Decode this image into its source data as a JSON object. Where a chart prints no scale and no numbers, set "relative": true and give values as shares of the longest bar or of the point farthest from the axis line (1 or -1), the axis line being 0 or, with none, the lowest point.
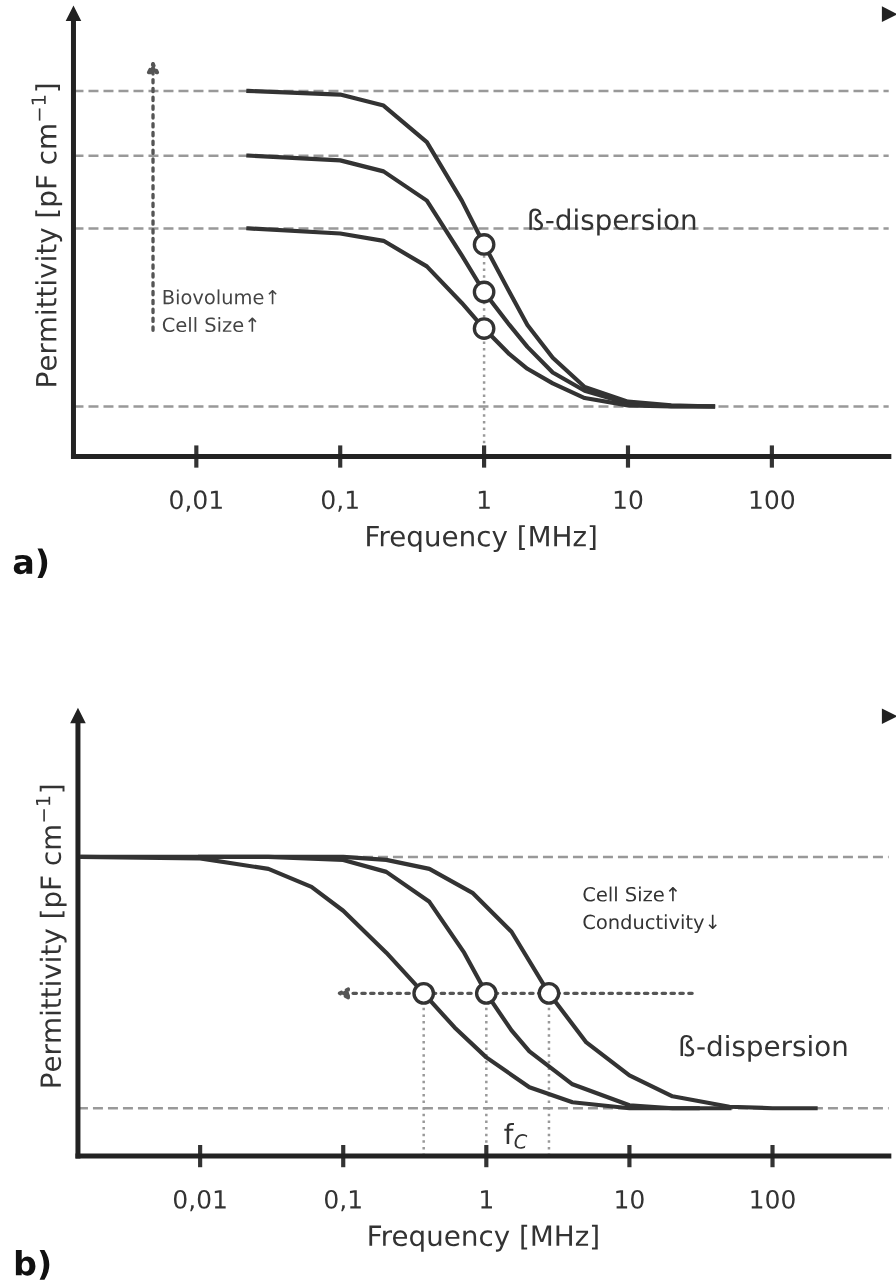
{
  "chart_data": [
    {
      "type": "line",
      "relative": true,
      "log": "x",
      "xlabel": "Frequency [MHz]",
      "ylabel": "Permittivity [pF cm$^{−1}$]",
      "xlim": [
        0.0014,
        650
      ],
      "xticks": [
        {
          "value": 0.01,
          "label": "0,01"
        },
        {
          "value": 0.1,
          "label": "0,1"
        },
        {
          "value": 1,
          "label": "1"
        },
        {
          "value": 10,
          "label": "10"
        },
        {
          "value": 100,
          "label": "100"
        }
      ],
      "grid": false,
      "legend": false,
      "line_style": "solid",
      "marker": "none",
      "series": [
        {
          "color": "#333333",
          "x": [
            0.023,
            0.1,
            0.2,
            0.4,
            0.7,
            1,
            1.5,
            2,
            3,
            5,
            10,
            20,
            39
          ],
          "values": [
            1,
            0.99,
            0.96,
            0.86,
            0.7,
            0.58,
            0.45,
            0.36,
            0.27,
            0.19,
            0.15,
            0.14,
            0.137
          ]
        },
        {
          "color": "#333333",
          "x": [
            0.023,
            0.1,
            0.2,
            0.4,
            0.7,
            1,
            1.5,
            2,
            3,
            5,
            10,
            20,
            39
          ],
          "values": [
            0.823,
            0.81,
            0.78,
            0.7,
            0.55,
            0.45,
            0.36,
            0.3,
            0.23,
            0.18,
            0.145,
            0.138,
            0.137
          ]
        },
        {
          "color": "#333333",
          "x": [
            0.023,
            0.1,
            0.2,
            0.4,
            0.7,
            1,
            1.5,
            2,
            3,
            5,
            10,
            20,
            39
          ],
          "values": [
            0.624,
            0.61,
            0.59,
            0.52,
            0.42,
            0.35,
            0.28,
            0.24,
            0.2,
            0.16,
            0.14,
            0.137,
            0.137
          ]
        },
        {
          "type": "scatter",
          "marker": "circle",
          "color": "#333333",
          "x": [
            1,
            1,
            1
          ],
          "values": [
            0.58,
            0.45,
            0.35
          ]
        }
      ],
      "ref_lines": [
        {
          "axis": "y",
          "value": 1,
          "color": "#999999",
          "line_style": "dashed"
        },
        {
          "axis": "y",
          "value": 0.823,
          "color": "#999999",
          "line_style": "dashed"
        },
        {
          "axis": "y",
          "value": 0.624,
          "color": "#999999",
          "line_style": "dashed"
        },
        {
          "axis": "y",
          "value": 0.137,
          "color": "#999999",
          "line_style": "dashed"
        },
        {
          "axis": "x",
          "value": 1,
          "color": "#999999",
          "line_style": "dotted"
        }
      ],
      "annotations": [
        "ß-dispersion",
        "Biovolume↑\nCell Size↑",
        "a)"
      ]
    },
    {
      "type": "line",
      "relative": true,
      "log": "x",
      "xlabel": "Frequency [MHz]",
      "ylabel": "Permittivity [pF cm$^{−1}$]",
      "xlim": [
        0.0014,
        650
      ],
      "xticks": [
        {
          "value": 0.01,
          "label": "0,01"
        },
        {
          "value": 0.1,
          "label": "0,1"
        },
        {
          "value": 1,
          "label": "1"
        },
        {
          "value": 10,
          "label": "10"
        },
        {
          "value": 100,
          "label": "100"
        }
      ],
      "grid": false,
      "legend": false,
      "line_style": "solid",
      "marker": "none",
      "series": [
        {
          "color": "#333333",
          "x": [
            0.0015,
            0.01,
            0.03,
            0.06,
            0.1,
            0.2,
            0.365,
            0.6,
            1,
            2,
            4,
            10,
            30
          ],
          "values": [
            1,
            0.995,
            0.96,
            0.9,
            0.82,
            0.68,
            0.544,
            0.43,
            0.33,
            0.23,
            0.18,
            0.16,
            0.16
          ]
        },
        {
          "color": "#333333",
          "x": [
            0.01,
            0.03,
            0.1,
            0.2,
            0.4,
            0.7,
            1,
            1.5,
            2,
            4,
            10,
            20,
            50
          ],
          "values": [
            1,
            1,
            0.99,
            0.95,
            0.85,
            0.68,
            0.544,
            0.42,
            0.35,
            0.24,
            0.17,
            0.16,
            0.16
          ]
        },
        {
          "color": "#333333",
          "x": [
            0.0015,
            0.1,
            0.2,
            0.4,
            0.8,
            1.5,
            2.74,
            5,
            10,
            20,
            50,
            100,
            200
          ],
          "values": [
            1,
            1,
            0.99,
            0.96,
            0.88,
            0.75,
            0.544,
            0.38,
            0.27,
            0.2,
            0.165,
            0.16,
            0.16
          ]
        },
        {
          "type": "scatter",
          "marker": "circle",
          "color": "#333333",
          "x": [
            0.365,
            1,
            2.74
          ],
          "values": [
            0.544,
            0.544,
            0.544
          ]
        }
      ],
      "ref_lines": [
        {
          "axis": "y",
          "value": 1,
          "color": "#999999",
          "line_style": "dashed"
        },
        {
          "axis": "y",
          "value": 0.16,
          "color": "#999999",
          "line_style": "dashed"
        },
        {
          "axis": "x",
          "value": 0.365,
          "color": "#999999",
          "line_style": "dotted"
        },
        {
          "axis": "x",
          "value": 1,
          "color": "#999999",
          "line_style": "dotted"
        },
        {
          "axis": "x",
          "value": 2.74,
          "color": "#999999",
          "line_style": "dotted"
        }
      ],
      "annotations": [
        "Cell Size↑\nConductivity↓",
        "ß-dispersion",
        "f$_{C}$",
        "b)"
      ]
    }
  ]
}
